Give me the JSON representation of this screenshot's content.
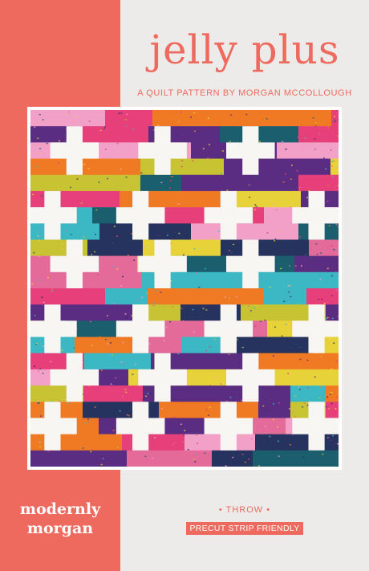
{
  "cover": {
    "title": "jelly plus",
    "subtitle": "A QUILT PATTERN BY MORGAN MCCOLLOUGH",
    "brand_line1": "modernly",
    "brand_line2": "morgan",
    "size_label": "• THROW •",
    "badge": "PRECUT STRIP FRIENDLY"
  },
  "colors": {
    "accent": "#ee6a5e",
    "background": "#ecebe9",
    "fabrics": [
      "#e63f7a",
      "#3bb8c4",
      "#e8d23a",
      "#f07a24",
      "#1b5e6e",
      "#f2a0c8",
      "#c7c332",
      "#5a2d82",
      "#e46a9a",
      "#26335e"
    ]
  },
  "quilt": {
    "image": "quilt-illustration",
    "pattern_rows": 22,
    "pattern_cols": 7
  }
}
